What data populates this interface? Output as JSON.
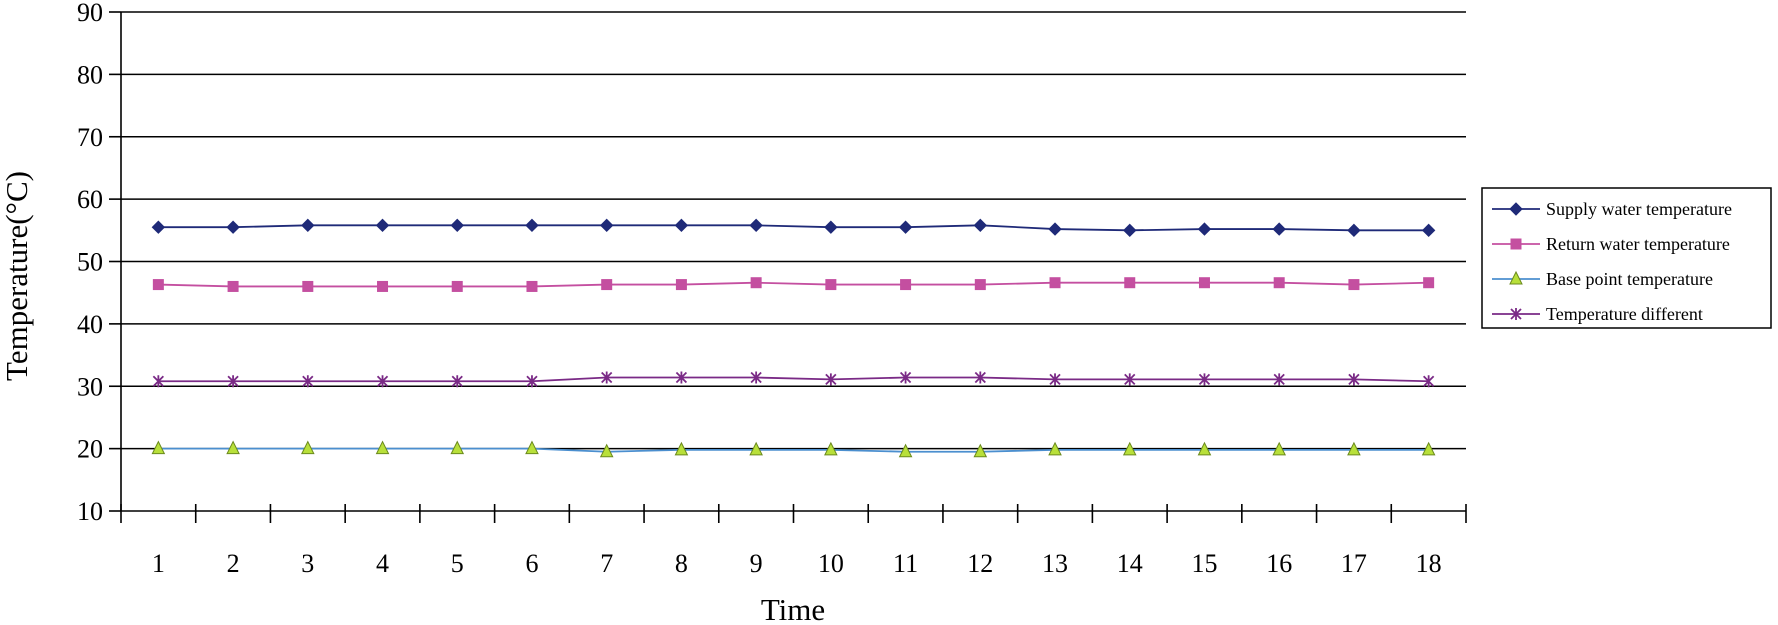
{
  "chart_data": {
    "type": "line",
    "title": "",
    "xlabel": "Time",
    "ylabel": "Temperature(°C)",
    "ylim": [
      10,
      90
    ],
    "yticks": [
      10,
      20,
      30,
      40,
      50,
      60,
      70,
      80,
      90
    ],
    "categories": [
      "1",
      "2",
      "3",
      "4",
      "5",
      "6",
      "7",
      "8",
      "9",
      "10",
      "11",
      "12",
      "13",
      "14",
      "15",
      "16",
      "17",
      "18"
    ],
    "grid": "horizontal",
    "legend_position": "right",
    "series": [
      {
        "name": "Supply water temperature",
        "color": "#1f2a78",
        "marker": "diamond",
        "values": [
          55.5,
          55.5,
          55.8,
          55.8,
          55.8,
          55.8,
          55.8,
          55.8,
          55.8,
          55.5,
          55.5,
          55.8,
          55.2,
          55.0,
          55.2,
          55.2,
          55.0,
          55.0
        ]
      },
      {
        "name": "Return water temperature",
        "color": "#c44fa0",
        "marker": "square",
        "values": [
          46.3,
          46.0,
          46.0,
          46.0,
          46.0,
          46.0,
          46.3,
          46.3,
          46.6,
          46.3,
          46.3,
          46.3,
          46.6,
          46.6,
          46.6,
          46.6,
          46.3,
          46.6
        ]
      },
      {
        "name": "Base point temperature",
        "color": "#4b8fcf",
        "marker": "triangle",
        "marker_fill": "#b8e03a",
        "values": [
          20.0,
          20.0,
          20.0,
          20.0,
          20.0,
          20.0,
          19.5,
          19.8,
          19.8,
          19.8,
          19.5,
          19.5,
          19.8,
          19.8,
          19.8,
          19.8,
          19.8,
          19.8
        ]
      },
      {
        "name": "Temperature different",
        "color": "#7a2a86",
        "marker": "asterisk",
        "values": [
          30.8,
          30.8,
          30.8,
          30.8,
          30.8,
          30.8,
          31.4,
          31.4,
          31.4,
          31.1,
          31.4,
          31.4,
          31.1,
          31.1,
          31.1,
          31.1,
          31.1,
          30.8
        ]
      }
    ]
  }
}
